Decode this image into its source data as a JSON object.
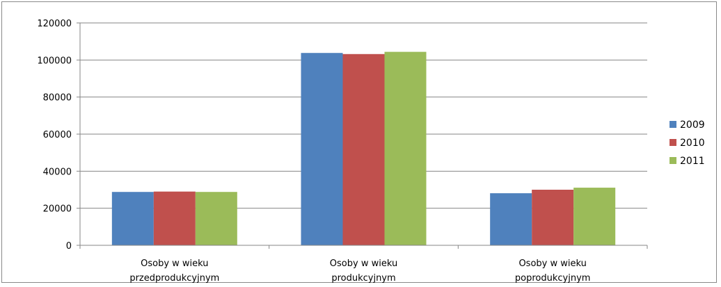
{
  "chart_data": {
    "type": "bar",
    "title": "",
    "xlabel": "",
    "ylabel": "",
    "categories": [
      [
        "Osoby w wieku",
        "przedprodukcyjnym"
      ],
      [
        "Osoby w wieku",
        "produkcyjnym"
      ],
      [
        "Osoby w wieku",
        "poprodukcyjnym"
      ]
    ],
    "series": [
      {
        "name": "2009",
        "color": "#4F81BD",
        "values": [
          28800,
          103800,
          28100
        ]
      },
      {
        "name": "2010",
        "color": "#C0504D",
        "values": [
          29000,
          103200,
          30000
        ]
      },
      {
        "name": "2011",
        "color": "#9BBB59",
        "values": [
          28800,
          104400,
          31100
        ]
      }
    ],
    "ylim": [
      0,
      120000
    ],
    "yticks": [
      0,
      20000,
      40000,
      60000,
      80000,
      100000,
      120000
    ],
    "grid": true,
    "legend_position": "right"
  }
}
